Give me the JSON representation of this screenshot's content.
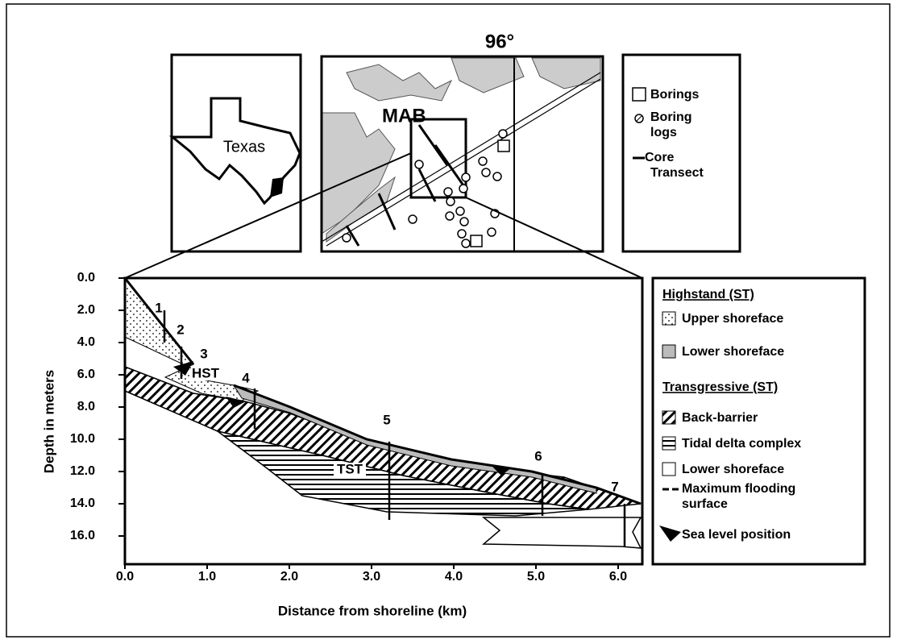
{
  "index_map": {
    "state_label": "Texas"
  },
  "site_map": {
    "longitude_label": "96°",
    "area_label": "MAB"
  },
  "map_legend": {
    "borings": "Borings",
    "boring_logs": [
      "Boring",
      "logs"
    ],
    "core_transect": [
      "Core",
      "Transect"
    ]
  },
  "cross_section": {
    "x_axis_label": "Distance from shoreline (km)",
    "y_axis_label": "Depth in meters",
    "x_ticks": [
      "0.0",
      "1.0",
      "2.0",
      "3.0",
      "4.0",
      "5.0",
      "6.0"
    ],
    "y_ticks": [
      "0.0",
      "2.0",
      "4.0",
      "6.0",
      "8.0",
      "10.0",
      "12.0",
      "14.0",
      "16.0"
    ],
    "core_labels": [
      "1",
      "2",
      "3",
      "4",
      "5",
      "6",
      "7"
    ],
    "unit_labels": [
      "HST",
      "TST"
    ]
  },
  "section_legend": {
    "highstand_header": "Highstand (ST)",
    "highstand_items": [
      "Upper shoreface",
      "Lower shoreface"
    ],
    "transgressive_header": "Transgressive (ST)",
    "transgressive_items": [
      "Back-barrier",
      "Tidal delta complex",
      "Lower shoreface"
    ],
    "flooding_surface": [
      "Maximum flooding",
      "surface"
    ],
    "sea_level": "Sea level position"
  }
}
